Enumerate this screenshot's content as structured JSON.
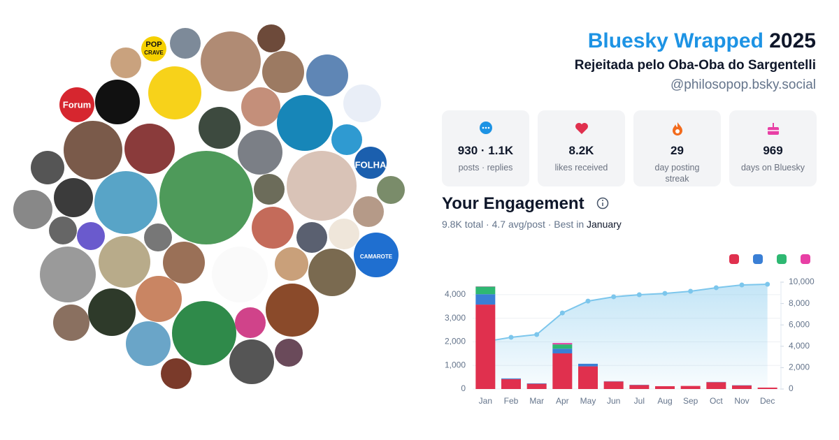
{
  "header": {
    "title": "Bluesky Wrapped",
    "year": "2025",
    "display_name": "Rejeitada pelo Oba-Oba do Sargentelli",
    "handle": "@philosopop.bsky.social"
  },
  "avatar_logos": [
    "POP",
    "CRAVE",
    "Forum",
    "FOLHA",
    "CAMAROTE"
  ],
  "stats": [
    {
      "value": "930 · 1.1K",
      "label": "posts · replies"
    },
    {
      "value": "8.2K",
      "label": "likes received"
    },
    {
      "value": "29",
      "label": "day posting streak"
    },
    {
      "value": "969",
      "label": "days on Bluesky"
    }
  ],
  "engagement": {
    "title": "Your Engagement",
    "summary": "9.8K total · 4.7 avg/post · Best in",
    "best_month": "January"
  },
  "chart_data": {
    "type": "bar",
    "stacked": true,
    "grid": true,
    "categories": [
      "Jan",
      "Feb",
      "Mar",
      "Apr",
      "May",
      "Jun",
      "Jul",
      "Aug",
      "Sep",
      "Oct",
      "Nov",
      "Dec"
    ],
    "series": [
      {
        "type": "bar",
        "color": "#e0304e",
        "values": [
          3580,
          420,
          220,
          1510,
          960,
          320,
          170,
          120,
          130,
          290,
          150,
          60
        ]
      },
      {
        "type": "bar",
        "color": "#3a7fd5",
        "values": [
          440,
          30,
          20,
          200,
          110,
          10,
          10,
          0,
          0,
          10,
          10,
          0
        ]
      },
      {
        "type": "bar",
        "color": "#2eb872",
        "values": [
          320,
          0,
          0,
          180,
          0,
          0,
          0,
          0,
          0,
          0,
          0,
          0
        ]
      },
      {
        "type": "bar",
        "color": "#e83fa5",
        "values": [
          10,
          0,
          0,
          60,
          0,
          0,
          0,
          0,
          0,
          0,
          0,
          0
        ]
      },
      {
        "type": "line",
        "axis": "y2",
        "color": "#7cc6ec",
        "values": [
          4440,
          4840,
          5100,
          7120,
          8230,
          8630,
          8820,
          8950,
          9150,
          9480,
          9740,
          9800
        ]
      }
    ],
    "ylim": [
      0,
      4530
    ],
    "yticks": [
      0,
      {
        "value": 1000,
        "label": "1,000"
      },
      {
        "value": 2000,
        "label": "2,000"
      },
      {
        "value": 3000,
        "label": "3,000"
      },
      {
        "value": 4000,
        "label": "4,000"
      }
    ],
    "y2lim": [
      0,
      10000
    ],
    "y2ticks": [
      0,
      {
        "value": 2000,
        "label": "2,000"
      },
      {
        "value": 4000,
        "label": "4,000"
      },
      {
        "value": 6000,
        "label": "6,000"
      },
      {
        "value": 8000,
        "label": "8,000"
      },
      {
        "value": 10000,
        "label": "10,000"
      }
    ]
  }
}
